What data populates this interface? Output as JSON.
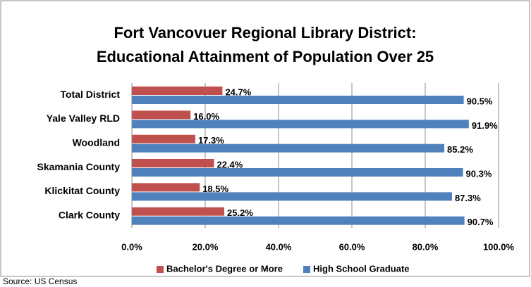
{
  "chart_data": {
    "type": "hbar",
    "title": [
      "Fort Vancovuer Regional Library District:",
      "Educational Attainment of Population Over 25"
    ],
    "categories": [
      "Total District",
      "Yale Valley RLD",
      "Woodland",
      "Skamania County",
      "Klickitat County",
      "Clark County"
    ],
    "series": [
      {
        "name": "Bachelor's Degree or More",
        "color": "#c0504d",
        "values": [
          24.7,
          16.0,
          17.3,
          22.4,
          18.5,
          25.2
        ],
        "value_labels": [
          "24.7%",
          "16.0%",
          "17.3%",
          "22.4%",
          "18.5%",
          "25.2%"
        ]
      },
      {
        "name": "High School Graduate",
        "color": "#4f81bd",
        "values": [
          90.5,
          91.9,
          85.2,
          90.3,
          87.3,
          90.7
        ],
        "value_labels": [
          "90.5%",
          "91.9%",
          "85.2%",
          "90.3%",
          "87.3%",
          "90.7%"
        ]
      }
    ],
    "xlim": [
      0,
      100
    ],
    "xticks": [
      {
        "value": 0,
        "label": "0.0%"
      },
      {
        "value": 20,
        "label": "20.0%"
      },
      {
        "value": 40,
        "label": "40.0%"
      },
      {
        "value": 60,
        "label": "60.0%"
      },
      {
        "value": 80,
        "label": "80.0%"
      },
      {
        "value": 100,
        "label": "100.0%"
      }
    ],
    "grid": true,
    "legend": "bottom",
    "source": "Source: US Census"
  }
}
